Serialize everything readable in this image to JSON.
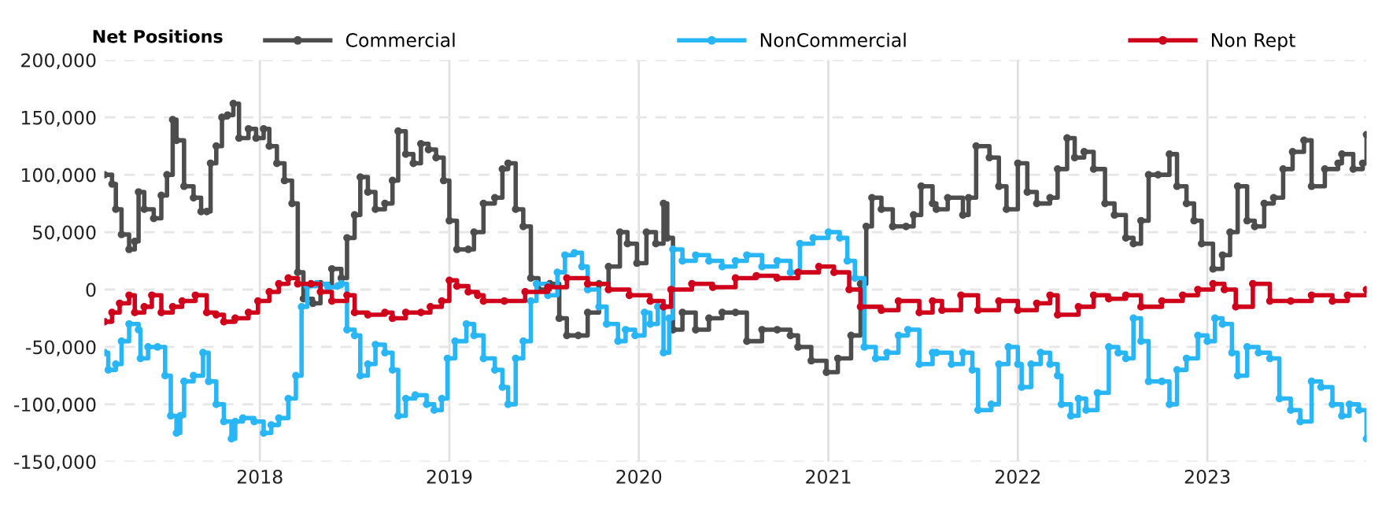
{
  "chart_data": {
    "type": "step",
    "legend_title": "Net Positions",
    "legend": "top",
    "grid": true,
    "marker": "circle",
    "line_style": "solid",
    "xlim": [
      2017.18,
      2023.84
    ],
    "xticks": [
      2018,
      2019,
      2020,
      2021,
      2022,
      2023
    ],
    "ylim": [
      -150000,
      200000
    ],
    "yticks": [
      {
        "value": -150000,
        "label": "-150,000"
      },
      {
        "value": -100000,
        "label": "-100,000"
      },
      {
        "value": -50000,
        "label": "-50,000"
      },
      {
        "value": 0,
        "label": "0"
      },
      {
        "value": 50000,
        "label": "50,000"
      },
      {
        "value": 100000,
        "label": "100,000"
      },
      {
        "value": 150000,
        "label": "150,000"
      },
      {
        "value": 200000,
        "label": "200,000"
      }
    ],
    "series": [
      {
        "name": "Commercial",
        "color": "#4d4d4d",
        "x": [
          2017.18,
          2017.22,
          2017.24,
          2017.27,
          2017.31,
          2017.34,
          2017.36,
          2017.39,
          2017.44,
          2017.48,
          2017.51,
          2017.54,
          2017.56,
          2017.6,
          2017.65,
          2017.69,
          2017.72,
          2017.74,
          2017.77,
          2017.8,
          2017.83,
          2017.86,
          2017.89,
          2017.94,
          2017.98,
          2018.02,
          2018.05,
          2018.09,
          2018.13,
          2018.17,
          2018.2,
          2018.23,
          2018.28,
          2018.32,
          2018.38,
          2018.43,
          2018.46,
          2018.5,
          2018.53,
          2018.57,
          2018.61,
          2018.66,
          2018.7,
          2018.73,
          2018.77,
          2018.81,
          2018.85,
          2018.89,
          2018.93,
          2018.97,
          2019.0,
          2019.04,
          2019.1,
          2019.13,
          2019.18,
          2019.24,
          2019.28,
          2019.31,
          2019.35,
          2019.39,
          2019.43,
          2019.47,
          2019.53,
          2019.58,
          2019.62,
          2019.68,
          2019.73,
          2019.79,
          2019.84,
          2019.9,
          2019.94,
          2019.99,
          2020.04,
          2020.09,
          2020.13,
          2020.15,
          2020.18,
          2020.23,
          2020.3,
          2020.37,
          2020.44,
          2020.51,
          2020.57,
          2020.65,
          2020.73,
          2020.8,
          2020.84,
          2020.91,
          2020.99,
          2021.05,
          2021.12,
          2021.17,
          2021.2,
          2021.23,
          2021.28,
          2021.34,
          2021.41,
          2021.45,
          2021.49,
          2021.55,
          2021.57,
          2021.63,
          2021.71,
          2021.74,
          2021.78,
          2021.85,
          2021.9,
          2021.94,
          2022.0,
          2022.05,
          2022.1,
          2022.17,
          2022.21,
          2022.26,
          2022.3,
          2022.35,
          2022.4,
          2022.46,
          2022.51,
          2022.57,
          2022.61,
          2022.65,
          2022.69,
          2022.74,
          2022.8,
          2022.84,
          2022.89,
          2022.93,
          2022.97,
          2023.03,
          2023.08,
          2023.12,
          2023.16,
          2023.21,
          2023.25,
          2023.3,
          2023.35,
          2023.4,
          2023.45,
          2023.51,
          2023.55,
          2023.62,
          2023.69,
          2023.71,
          2023.77,
          2023.82,
          2023.84
        ],
        "values": [
          100000,
          92000,
          70000,
          48000,
          35000,
          42000,
          85000,
          70000,
          62000,
          82000,
          100000,
          148000,
          130000,
          90000,
          80000,
          68000,
          68000,
          110000,
          125000,
          150000,
          152000,
          162000,
          132000,
          140000,
          132000,
          140000,
          125000,
          110000,
          95000,
          75000,
          15000,
          -8000,
          -12000,
          5000,
          18000,
          10000,
          45000,
          65000,
          98000,
          85000,
          70000,
          75000,
          95000,
          138000,
          118000,
          110000,
          127000,
          122000,
          115000,
          95000,
          60000,
          35000,
          35000,
          50000,
          75000,
          80000,
          105000,
          110000,
          70000,
          55000,
          10000,
          0,
          5000,
          -25000,
          -40000,
          -40000,
          -20000,
          5000,
          20000,
          50000,
          40000,
          23000,
          50000,
          40000,
          75000,
          45000,
          -35000,
          -20000,
          -35000,
          -25000,
          -20000,
          -20000,
          -45000,
          -35000,
          -35000,
          -40000,
          -50000,
          -62000,
          -72000,
          -60000,
          -40000,
          5000,
          55000,
          80000,
          70000,
          55000,
          55000,
          65000,
          90000,
          75000,
          70000,
          80000,
          65000,
          80000,
          125000,
          115000,
          90000,
          70000,
          110000,
          85000,
          75000,
          80000,
          105000,
          132000,
          115000,
          120000,
          105000,
          75000,
          65000,
          45000,
          40000,
          60000,
          100000,
          100000,
          118000,
          90000,
          75000,
          60000,
          40000,
          18000,
          30000,
          50000,
          90000,
          60000,
          55000,
          75000,
          80000,
          105000,
          120000,
          130000,
          90000,
          105000,
          110000,
          118000,
          105000,
          110000,
          135000
        ]
      },
      {
        "name": "NonCommercial",
        "color": "#29b6f6",
        "x": [
          2017.18,
          2017.2,
          2017.24,
          2017.27,
          2017.31,
          2017.36,
          2017.37,
          2017.41,
          2017.46,
          2017.5,
          2017.53,
          2017.56,
          2017.58,
          2017.6,
          2017.65,
          2017.7,
          2017.73,
          2017.77,
          2017.81,
          2017.85,
          2017.87,
          2017.91,
          2017.97,
          2018.02,
          2018.06,
          2018.1,
          2018.15,
          2018.19,
          2018.22,
          2018.25,
          2018.3,
          2018.36,
          2018.41,
          2018.43,
          2018.46,
          2018.5,
          2018.53,
          2018.57,
          2018.61,
          2018.66,
          2018.7,
          2018.73,
          2018.77,
          2018.82,
          2018.88,
          2018.92,
          2018.96,
          2018.99,
          2019.03,
          2019.09,
          2019.13,
          2019.18,
          2019.24,
          2019.28,
          2019.31,
          2019.35,
          2019.39,
          2019.43,
          2019.46,
          2019.52,
          2019.57,
          2019.61,
          2019.66,
          2019.7,
          2019.73,
          2019.79,
          2019.83,
          2019.89,
          2019.93,
          2019.98,
          2020.03,
          2020.06,
          2020.1,
          2020.13,
          2020.16,
          2020.18,
          2020.23,
          2020.3,
          2020.37,
          2020.44,
          2020.51,
          2020.57,
          2020.65,
          2020.73,
          2020.8,
          2020.85,
          2020.92,
          2021.0,
          2021.06,
          2021.1,
          2021.14,
          2021.19,
          2021.25,
          2021.31,
          2021.37,
          2021.42,
          2021.48,
          2021.55,
          2021.57,
          2021.65,
          2021.71,
          2021.76,
          2021.79,
          2021.86,
          2021.9,
          2021.95,
          2022.0,
          2022.02,
          2022.07,
          2022.12,
          2022.17,
          2022.21,
          2022.23,
          2022.28,
          2022.32,
          2022.36,
          2022.42,
          2022.48,
          2022.53,
          2022.57,
          2022.61,
          2022.65,
          2022.69,
          2022.76,
          2022.8,
          2022.84,
          2022.89,
          2022.95,
          2023.0,
          2023.04,
          2023.08,
          2023.13,
          2023.16,
          2023.21,
          2023.27,
          2023.33,
          2023.38,
          2023.44,
          2023.49,
          2023.55,
          2023.6,
          2023.66,
          2023.71,
          2023.75,
          2023.8,
          2023.84
        ],
        "values": [
          -55000,
          -70000,
          -65000,
          -45000,
          -30000,
          -35000,
          -60000,
          -50000,
          -50000,
          -75000,
          -110000,
          -125000,
          -110000,
          -80000,
          -75000,
          -55000,
          -80000,
          -100000,
          -115000,
          -130000,
          -115000,
          -112000,
          -115000,
          -125000,
          -118000,
          -112000,
          -95000,
          -75000,
          -15000,
          3000,
          5000,
          2000,
          3000,
          5000,
          -35000,
          -40000,
          -75000,
          -65000,
          -48000,
          -55000,
          -70000,
          -110000,
          -95000,
          -92000,
          -100000,
          -105000,
          -95000,
          -60000,
          -45000,
          -30000,
          -40000,
          -60000,
          -70000,
          -85000,
          -100000,
          -60000,
          -45000,
          -10000,
          5000,
          -5000,
          15000,
          30000,
          32000,
          20000,
          0,
          -15000,
          -30000,
          -45000,
          -35000,
          -40000,
          -20000,
          -30000,
          -15000,
          -55000,
          -25000,
          35000,
          25000,
          30000,
          25000,
          20000,
          25000,
          30000,
          20000,
          25000,
          15000,
          40000,
          45000,
          50000,
          45000,
          25000,
          10000,
          -50000,
          -60000,
          -55000,
          -40000,
          -35000,
          -65000,
          -55000,
          -55000,
          -65000,
          -55000,
          -70000,
          -105000,
          -100000,
          -65000,
          -50000,
          -65000,
          -85000,
          -65000,
          -55000,
          -65000,
          -75000,
          -100000,
          -110000,
          -95000,
          -105000,
          -90000,
          -50000,
          -55000,
          -60000,
          -25000,
          -45000,
          -80000,
          -80000,
          -100000,
          -70000,
          -60000,
          -40000,
          -45000,
          -25000,
          -30000,
          -55000,
          -75000,
          -50000,
          -55000,
          -60000,
          -95000,
          -105000,
          -115000,
          -80000,
          -85000,
          -100000,
          -110000,
          -100000,
          -105000,
          -130000
        ]
      },
      {
        "name": "Non Rept",
        "color": "#d0021b",
        "x": [
          2017.18,
          2017.22,
          2017.26,
          2017.31,
          2017.34,
          2017.39,
          2017.43,
          2017.48,
          2017.54,
          2017.59,
          2017.66,
          2017.72,
          2017.77,
          2017.81,
          2017.87,
          2017.94,
          2017.99,
          2018.05,
          2018.1,
          2018.15,
          2018.2,
          2018.27,
          2018.32,
          2018.38,
          2018.46,
          2018.5,
          2018.57,
          2018.66,
          2018.7,
          2018.77,
          2018.85,
          2018.9,
          2018.96,
          2019.0,
          2019.04,
          2019.1,
          2019.15,
          2019.18,
          2019.29,
          2019.4,
          2019.52,
          2019.62,
          2019.73,
          2019.84,
          2019.95,
          2020.06,
          2020.13,
          2020.17,
          2020.28,
          2020.39,
          2020.51,
          2020.62,
          2020.73,
          2020.84,
          2020.95,
          2021.03,
          2021.11,
          2021.17,
          2021.28,
          2021.37,
          2021.48,
          2021.55,
          2021.6,
          2021.7,
          2021.79,
          2021.9,
          2022.0,
          2022.1,
          2022.17,
          2022.21,
          2022.32,
          2022.4,
          2022.48,
          2022.57,
          2022.65,
          2022.76,
          2022.87,
          2022.95,
          2023.03,
          2023.09,
          2023.15,
          2023.24,
          2023.33,
          2023.44,
          2023.55,
          2023.66,
          2023.74,
          2023.84
        ],
        "values": [
          -28000,
          -20000,
          -12000,
          -5000,
          -20000,
          -15000,
          -5000,
          -20000,
          -15000,
          -10000,
          -5000,
          -20000,
          -22000,
          -28000,
          -25000,
          -20000,
          -10000,
          -2000,
          5000,
          10000,
          5000,
          5000,
          -2000,
          -10000,
          -5000,
          -20000,
          -22000,
          -20000,
          -25000,
          -20000,
          -20000,
          -15000,
          -10000,
          8000,
          3000,
          -2000,
          -5000,
          -10000,
          -10000,
          -2000,
          2000,
          10000,
          5000,
          0,
          -5000,
          -10000,
          -15000,
          0,
          5000,
          2000,
          10000,
          12000,
          10000,
          15000,
          20000,
          15000,
          0,
          -15000,
          -18000,
          -10000,
          -20000,
          -10000,
          -18000,
          -5000,
          -18000,
          -10000,
          -18000,
          -12000,
          -5000,
          -22000,
          -15000,
          -5000,
          -8000,
          -5000,
          -15000,
          -10000,
          -5000,
          0,
          5000,
          0,
          -15000,
          5000,
          -10000,
          -10000,
          -5000,
          -10000,
          -5000,
          0
        ]
      }
    ]
  }
}
